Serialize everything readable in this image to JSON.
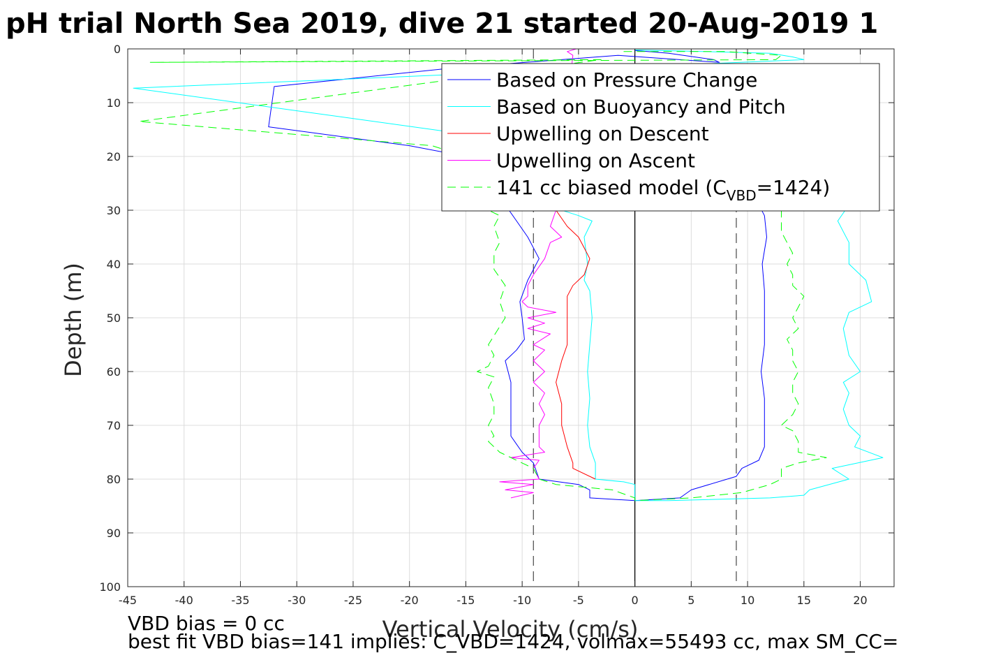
{
  "chart_data": {
    "type": "line",
    "title": "pH trial North Sea 2019, dive 21 started 20-Aug-2019 1",
    "xlabel": "Vertical Velocity (cm/s)",
    "ylabel": "Depth (m)",
    "xlim": [
      -45,
      23
    ],
    "ylim": [
      0,
      100
    ],
    "y_reversed": true,
    "grid": true,
    "xticks": [
      -45,
      -40,
      -35,
      -30,
      -25,
      -20,
      -15,
      -10,
      -5,
      0,
      5,
      10,
      15,
      20
    ],
    "yticks": [
      0,
      10,
      20,
      30,
      40,
      50,
      60,
      70,
      80,
      90,
      100
    ],
    "legend_position": "top-right",
    "legend": [
      {
        "label": "Based on Pressure Change",
        "color": "#0000ff",
        "dash": "solid"
      },
      {
        "label": "Based on Buoyancy and Pitch",
        "color": "#00ffff",
        "dash": "solid"
      },
      {
        "label": "Upwelling on Descent",
        "color": "#ff0000",
        "dash": "solid"
      },
      {
        "label": "Upwelling on Ascent",
        "color": "#ff00ff",
        "dash": "solid"
      },
      {
        "label_pre": "141 cc biased model (C",
        "label_sub": "VBD",
        "label_post": "=1424)",
        "color": "#00ff00",
        "dash": "dashed"
      }
    ],
    "reference_lines": [
      {
        "x": 0,
        "color": "#000000",
        "dash": "solid"
      },
      {
        "x": -9,
        "color": "#555555",
        "dash": "dashed"
      },
      {
        "x": 9,
        "color": "#555555",
        "dash": "dashed"
      }
    ],
    "series": [
      {
        "name": "Based on Pressure Change",
        "color": "#0000ff",
        "dash": "solid",
        "points": [
          [
            0,
            0.3
          ],
          [
            3,
            0.8
          ],
          [
            7,
            2
          ],
          [
            7.5,
            2.5
          ],
          [
            -1.5,
            1.2
          ],
          [
            -16,
            3.5
          ],
          [
            -32,
            7
          ],
          [
            -32.5,
            14.5
          ],
          [
            -20,
            18
          ],
          [
            -15,
            20
          ],
          [
            -13,
            22
          ],
          [
            -12,
            26
          ],
          [
            -11.5,
            29
          ],
          [
            -10.5,
            32
          ],
          [
            -9.5,
            35
          ],
          [
            -8.5,
            39
          ],
          [
            -9.5,
            43
          ],
          [
            -10.2,
            47
          ],
          [
            -10,
            50
          ],
          [
            -9.8,
            54
          ],
          [
            -10.5,
            56
          ],
          [
            -11.5,
            58
          ],
          [
            -11,
            62
          ],
          [
            -11,
            67
          ],
          [
            -11,
            72
          ],
          [
            -10,
            75
          ],
          [
            -9,
            77
          ],
          [
            -8.5,
            80
          ],
          [
            -5,
            81
          ],
          [
            -4,
            82
          ],
          [
            -4,
            83.5
          ],
          [
            0,
            84
          ],
          [
            4,
            83.5
          ],
          [
            5,
            82
          ],
          [
            9,
            79.5
          ],
          [
            9.5,
            78
          ],
          [
            11,
            76.5
          ],
          [
            11.5,
            74
          ],
          [
            11.5,
            70
          ],
          [
            11.5,
            65
          ],
          [
            11.2,
            60
          ],
          [
            11.5,
            55
          ],
          [
            11.5,
            50
          ],
          [
            11.5,
            45
          ],
          [
            11.3,
            40
          ],
          [
            11.7,
            35
          ],
          [
            11.5,
            31
          ],
          [
            11,
            29
          ]
        ]
      },
      {
        "name": "Based on Buoyancy and Pitch",
        "color": "#00ffff",
        "dash": "solid",
        "points": [
          [
            0,
            0.2
          ],
          [
            6,
            0.5
          ],
          [
            12,
            0.8
          ],
          [
            14,
            1.5
          ],
          [
            15,
            2
          ],
          [
            -44.5,
            7.3
          ],
          [
            -14.5,
            16
          ],
          [
            -12,
            20
          ],
          [
            -10,
            24
          ],
          [
            -8,
            29
          ],
          [
            -5,
            31
          ],
          [
            -3.8,
            32
          ],
          [
            -4.5,
            35
          ],
          [
            -4.2,
            40
          ],
          [
            -4.5,
            43
          ],
          [
            -4,
            45
          ],
          [
            -3.8,
            50
          ],
          [
            -4,
            55
          ],
          [
            -4.2,
            60
          ],
          [
            -4,
            65
          ],
          [
            -4.2,
            70
          ],
          [
            -4,
            74
          ],
          [
            -3.5,
            77
          ],
          [
            -3.5,
            80
          ],
          [
            -1,
            80.5
          ],
          [
            0,
            81
          ],
          [
            0,
            83
          ],
          [
            0,
            84
          ],
          [
            3,
            84
          ],
          [
            12,
            83.5
          ],
          [
            15,
            83
          ],
          [
            15.5,
            82
          ],
          [
            19,
            80
          ],
          [
            17.5,
            78
          ],
          [
            22,
            76
          ],
          [
            19.5,
            74
          ],
          [
            20,
            72
          ],
          [
            19,
            70
          ],
          [
            18.5,
            67
          ],
          [
            19,
            64
          ],
          [
            18.5,
            62
          ],
          [
            20,
            60
          ],
          [
            19,
            57
          ],
          [
            18.5,
            52
          ],
          [
            19,
            49
          ],
          [
            21,
            47
          ],
          [
            20.5,
            43
          ],
          [
            19,
            40
          ],
          [
            19,
            36
          ],
          [
            18.5,
            34
          ],
          [
            18,
            32
          ],
          [
            19,
            29
          ]
        ]
      },
      {
        "name": "Upwelling on Descent",
        "color": "#ff0000",
        "dash": "solid",
        "points": [
          [
            -7,
            30
          ],
          [
            -6,
            33
          ],
          [
            -5,
            35
          ],
          [
            -4.5,
            37
          ],
          [
            -4,
            39
          ],
          [
            -4.5,
            42
          ],
          [
            -5.5,
            44
          ],
          [
            -6,
            46
          ],
          [
            -6,
            50
          ],
          [
            -6,
            55
          ],
          [
            -6.5,
            58
          ],
          [
            -7,
            62
          ],
          [
            -6.5,
            66
          ],
          [
            -6.5,
            70
          ],
          [
            -6,
            74
          ],
          [
            -5.5,
            77
          ],
          [
            -5.5,
            78
          ],
          [
            -3.5,
            80
          ]
        ]
      },
      {
        "name": "Upwelling on Ascent",
        "color": "#ff00ff",
        "dash": "solid",
        "points": [
          [
            -5.2,
            0
          ],
          [
            -6,
            0.5
          ],
          [
            -5.5,
            1.2
          ],
          [
            -7,
            30
          ],
          [
            -7.5,
            33
          ],
          [
            -6.5,
            35
          ],
          [
            -7.5,
            36
          ],
          [
            -8,
            39
          ],
          [
            -9,
            42
          ],
          [
            -9.5,
            44
          ],
          [
            -9.5,
            46
          ],
          [
            -10,
            47
          ],
          [
            -9.5,
            48
          ],
          [
            -7,
            49
          ],
          [
            -9.5,
            50
          ],
          [
            -8,
            51
          ],
          [
            -9.5,
            52
          ],
          [
            -7.5,
            53
          ],
          [
            -9,
            55
          ],
          [
            -8,
            56
          ],
          [
            -9,
            58
          ],
          [
            -8,
            60
          ],
          [
            -9,
            62
          ],
          [
            -8,
            64
          ],
          [
            -8.5,
            66
          ],
          [
            -8,
            68
          ],
          [
            -8.5,
            70
          ],
          [
            -8.5,
            72
          ],
          [
            -8.5,
            74
          ],
          [
            -8,
            75
          ],
          [
            -11,
            76
          ],
          [
            -8.5,
            76.5
          ],
          [
            -9,
            78
          ],
          [
            -8.5,
            80
          ],
          [
            -12,
            80.5
          ],
          [
            -9,
            81
          ],
          [
            -11.5,
            82
          ],
          [
            -9,
            82.5
          ],
          [
            -11,
            83.5
          ]
        ]
      },
      {
        "name": "141 cc biased model",
        "color": "#00ff00",
        "dash": "dashed",
        "points": [
          [
            -1,
            0.5
          ],
          [
            8,
            0.5
          ],
          [
            13,
            1.2
          ],
          [
            12.5,
            2
          ],
          [
            -43,
            2.5
          ],
          [
            -3,
            2
          ],
          [
            -44,
            13.5
          ],
          [
            -18,
            18
          ],
          [
            -15,
            20
          ],
          [
            -16,
            22
          ],
          [
            -17,
            24
          ],
          [
            -17,
            27
          ],
          [
            -14,
            29
          ],
          [
            -12,
            31
          ],
          [
            -12.5,
            33
          ],
          [
            -12,
            36
          ],
          [
            -12.5,
            38
          ],
          [
            -12.5,
            41
          ],
          [
            -11.5,
            44
          ],
          [
            -12,
            47
          ],
          [
            -11.5,
            50
          ],
          [
            -13,
            55
          ],
          [
            -12.5,
            57
          ],
          [
            -13,
            59
          ],
          [
            -14,
            60
          ],
          [
            -12.5,
            61
          ],
          [
            -13,
            63
          ],
          [
            -12.5,
            66
          ],
          [
            -12.5,
            68
          ],
          [
            -13,
            70
          ],
          [
            -12.5,
            72
          ],
          [
            -13,
            73
          ],
          [
            -12,
            75
          ],
          [
            -10,
            77
          ],
          [
            -9,
            78
          ],
          [
            -8.5,
            80
          ],
          [
            -7,
            81
          ],
          [
            -2,
            82
          ],
          [
            0,
            83.5
          ],
          [
            0,
            84
          ],
          [
            5,
            83.5
          ],
          [
            9.5,
            82.5
          ],
          [
            12,
            81
          ],
          [
            13,
            80
          ],
          [
            13,
            78
          ],
          [
            14.5,
            77
          ],
          [
            17,
            76
          ],
          [
            14.5,
            75
          ],
          [
            14.5,
            73
          ],
          [
            14,
            71
          ],
          [
            13,
            70
          ],
          [
            14,
            68
          ],
          [
            14.5,
            66
          ],
          [
            14,
            64
          ],
          [
            14,
            62
          ],
          [
            14.5,
            60
          ],
          [
            14,
            58
          ],
          [
            14,
            56
          ],
          [
            13.5,
            54
          ],
          [
            14.5,
            52
          ],
          [
            14,
            50
          ],
          [
            14.5,
            48
          ],
          [
            15,
            46
          ],
          [
            14,
            44
          ],
          [
            14,
            42
          ],
          [
            13.5,
            40
          ],
          [
            14,
            38
          ],
          [
            13.5,
            36
          ],
          [
            13,
            34
          ],
          [
            13,
            32
          ],
          [
            13,
            30
          ]
        ]
      }
    ]
  },
  "notes": {
    "line1": "VBD bias = 0 cc",
    "line2": "best fit VBD bias=141 implies: C_VBD=1424, volmax=55493 cc, max SM_CC="
  }
}
